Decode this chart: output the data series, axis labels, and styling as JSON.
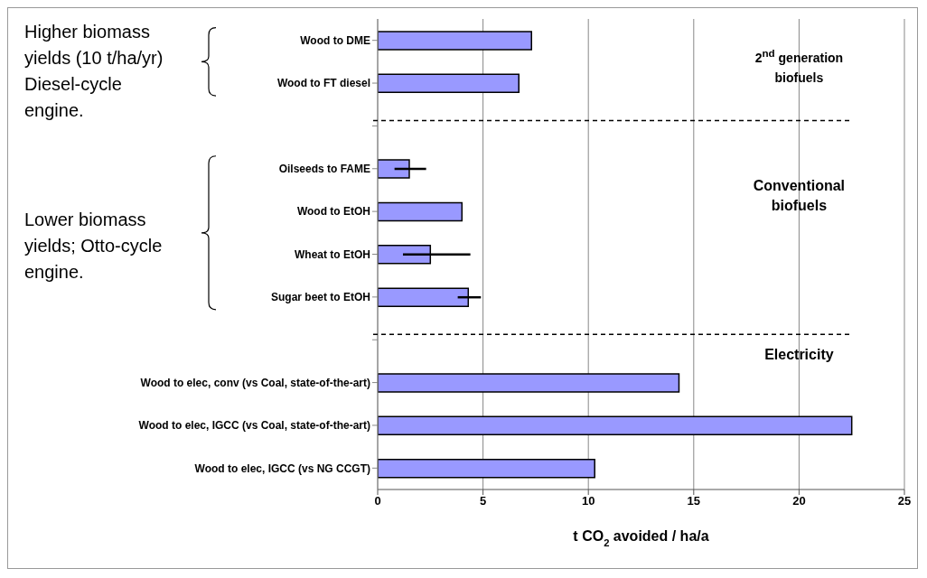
{
  "chart_data": {
    "type": "bar",
    "orientation": "horizontal",
    "categories": [
      "Wood to DME",
      "Wood to FT diesel",
      null,
      "Oilseeds to FAME",
      "Wood to EtOH",
      "Wheat to EtOH",
      "Sugar beet to EtOH",
      null,
      "Wood to elec, conv (vs Coal, state-of-the-art)",
      "Wood to elec, IGCC (vs Coal, state-of-the-art)",
      "Wood to elec, IGCC (vs NG CCGT)"
    ],
    "values": [
      7.3,
      6.7,
      null,
      1.5,
      4.0,
      2.5,
      4.3,
      null,
      14.3,
      22.5,
      10.3
    ],
    "errors": [
      null,
      null,
      null,
      [
        0.8,
        2.3
      ],
      null,
      [
        1.2,
        4.4
      ],
      [
        3.8,
        4.9
      ],
      null,
      null,
      null,
      null
    ],
    "color": "#9999ff",
    "xlabel": "t CO$_{2}$ avoided / ha/a",
    "xlim": [
      0,
      25
    ],
    "xticks": [
      0,
      5,
      10,
      15,
      20,
      25
    ],
    "grid": "x",
    "annotations": [
      "Higher biomass yields (10 t/ha/yr) Diesel-cycle engine.",
      "Lower biomass yields; Otto-cycle engine.",
      "2$^{nd}$ generation biofuels",
      "Conventional biofuels",
      "Electricity"
    ]
  }
}
